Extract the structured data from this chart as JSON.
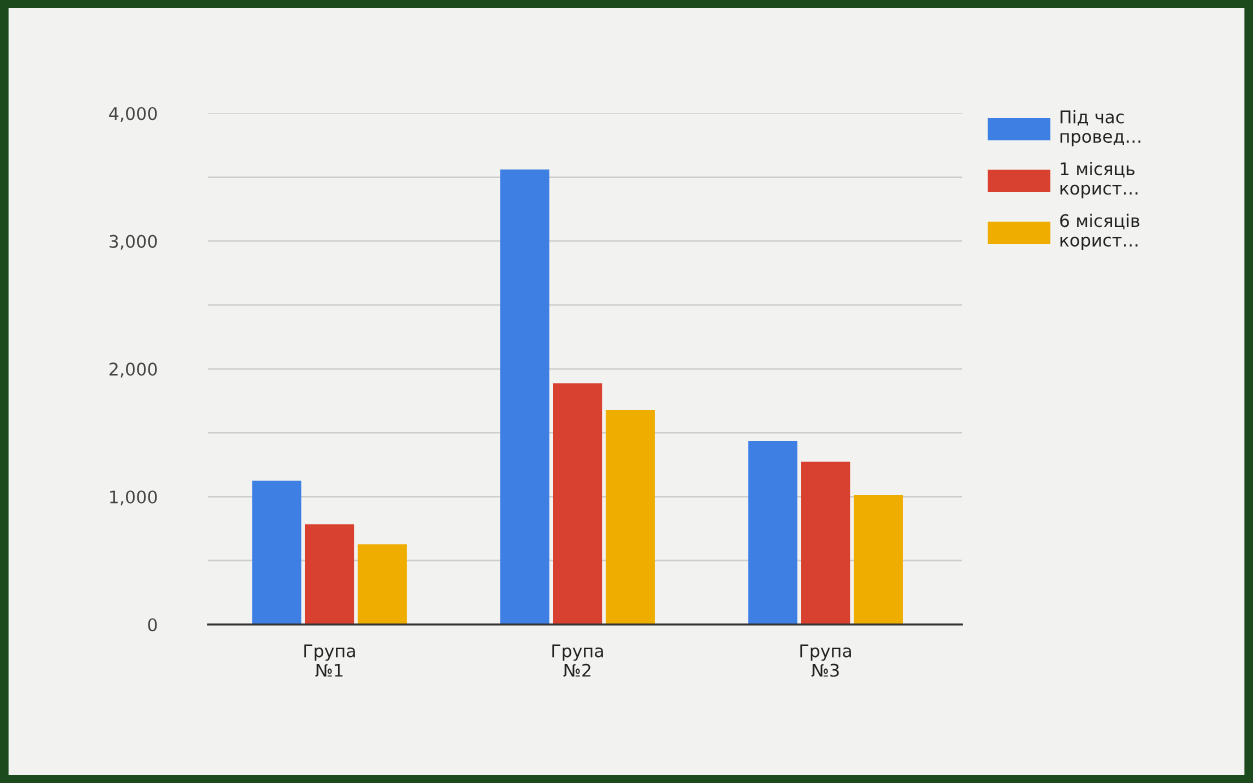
{
  "chart_data": {
    "type": "bar",
    "categories": [
      "Група №1",
      "Група №2",
      "Група №3"
    ],
    "series": [
      {
        "name": "Під час провед…",
        "color": "#3e7fe4",
        "values": [
          1125,
          3560,
          1436
        ]
      },
      {
        "name": "1 місяць корист…",
        "color": "#d8402f",
        "values": [
          785,
          1887,
          1274
        ]
      },
      {
        "name": "6 місяців корист…",
        "color": "#efad00",
        "values": [
          628,
          1678,
          1013
        ]
      }
    ],
    "ylim": [
      0,
      4000
    ],
    "yticks": [
      0,
      {
        "value": 500,
        "label": null
      },
      {
        "value": 1000,
        "label": "1,000"
      },
      {
        "value": 1500,
        "label": null
      },
      {
        "value": 2000,
        "label": "2,000"
      },
      {
        "value": 2500,
        "label": null
      },
      {
        "value": 3000,
        "label": "3,000"
      },
      {
        "value": 3500,
        "label": null
      },
      {
        "value": 4000,
        "label": "4,000"
      }
    ],
    "grid": "y",
    "legend": "top right"
  }
}
